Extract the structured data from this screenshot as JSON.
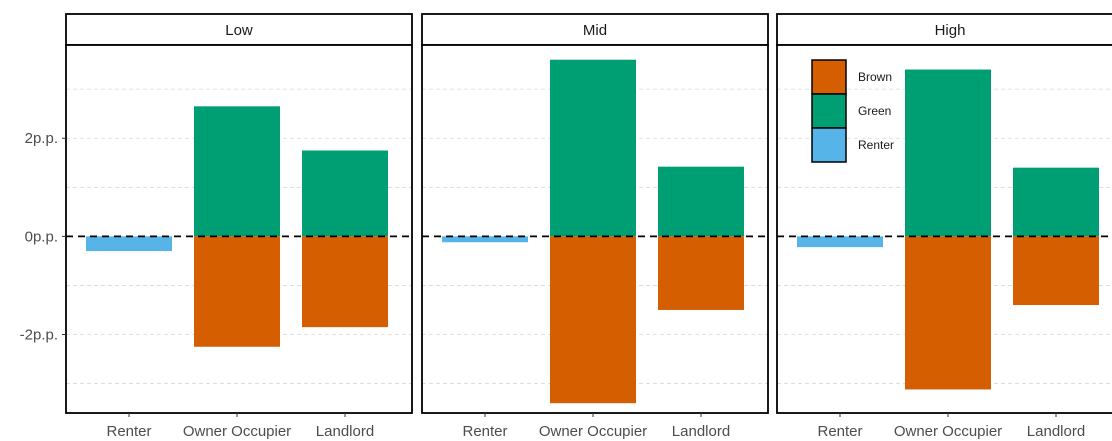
{
  "chart_data": {
    "type": "bar",
    "stacked": "diverging",
    "categories": [
      "Renter",
      "Owner Occupier",
      "Landlord"
    ],
    "y_ticks": [
      {
        "value": 2,
        "label": "2p.p."
      },
      {
        "value": 0,
        "label": "0p.p."
      },
      {
        "value": -2,
        "label": "-2p.p."
      }
    ],
    "ylim": [
      -3.6,
      3.9
    ],
    "reference_line": 0,
    "grid": "horizontal dashed",
    "legend": {
      "placement": "inside top-left of High panel",
      "items": [
        {
          "name": "Brown",
          "color": "#D55E00"
        },
        {
          "name": "Green",
          "color": "#009E73"
        },
        {
          "name": "Renter",
          "color": "#56B4E9"
        }
      ]
    },
    "panels": [
      {
        "title": "Low",
        "bars": [
          {
            "category": "Renter",
            "Renter": -0.3
          },
          {
            "category": "Owner Occupier",
            "Green": 2.65,
            "Brown": -2.25
          },
          {
            "category": "Landlord",
            "Green": 1.75,
            "Brown": -1.85
          }
        ]
      },
      {
        "title": "Mid",
        "bars": [
          {
            "category": "Renter",
            "Renter": -0.12
          },
          {
            "category": "Owner Occupier",
            "Green": 3.6,
            "Brown": -3.4
          },
          {
            "category": "Landlord",
            "Green": 1.42,
            "Brown": -1.5
          }
        ]
      },
      {
        "title": "High",
        "bars": [
          {
            "category": "Renter",
            "Renter": -0.22
          },
          {
            "category": "Owner Occupier",
            "Green": 3.4,
            "Brown": -3.12
          },
          {
            "category": "Landlord",
            "Green": 1.4,
            "Brown": -1.4
          }
        ]
      }
    ]
  }
}
